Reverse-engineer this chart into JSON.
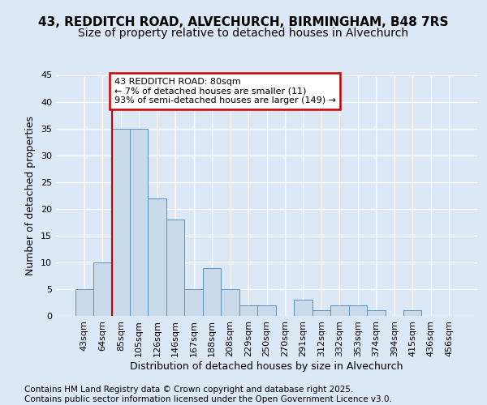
{
  "title_line1": "43, REDDITCH ROAD, ALVECHURCH, BIRMINGHAM, B48 7RS",
  "title_line2": "Size of property relative to detached houses in Alvechurch",
  "xlabel": "Distribution of detached houses by size in Alvechurch",
  "ylabel": "Number of detached properties",
  "categories": [
    "43sqm",
    "64sqm",
    "85sqm",
    "105sqm",
    "126sqm",
    "146sqm",
    "167sqm",
    "188sqm",
    "208sqm",
    "229sqm",
    "250sqm",
    "270sqm",
    "291sqm",
    "312sqm",
    "332sqm",
    "353sqm",
    "374sqm",
    "394sqm",
    "415sqm",
    "436sqm",
    "456sqm"
  ],
  "values": [
    5,
    10,
    35,
    35,
    22,
    18,
    5,
    9,
    5,
    2,
    2,
    0,
    3,
    1,
    2,
    2,
    1,
    0,
    1,
    0,
    0
  ],
  "bar_color": "#c9daea",
  "bar_edge_color": "#5a8fc0",
  "highlight_line_idx": 2,
  "annotation_text": "43 REDDITCH ROAD: 80sqm\n← 7% of detached houses are smaller (11)\n93% of semi-detached houses are larger (149) →",
  "annotation_box_color": "#ffffff",
  "annotation_box_edge": "#cc0000",
  "highlight_line_color": "#cc0000",
  "ylim": [
    0,
    45
  ],
  "yticks": [
    0,
    5,
    10,
    15,
    20,
    25,
    30,
    35,
    40,
    45
  ],
  "footer_line1": "Contains HM Land Registry data © Crown copyright and database right 2025.",
  "footer_line2": "Contains public sector information licensed under the Open Government Licence v3.0.",
  "background_color": "#dce8f5",
  "plot_bg_color": "#dce8f5",
  "grid_color": "#ffffff",
  "title_fontsize": 11,
  "subtitle_fontsize": 10,
  "axis_label_fontsize": 9,
  "tick_fontsize": 8,
  "footer_fontsize": 7.5
}
